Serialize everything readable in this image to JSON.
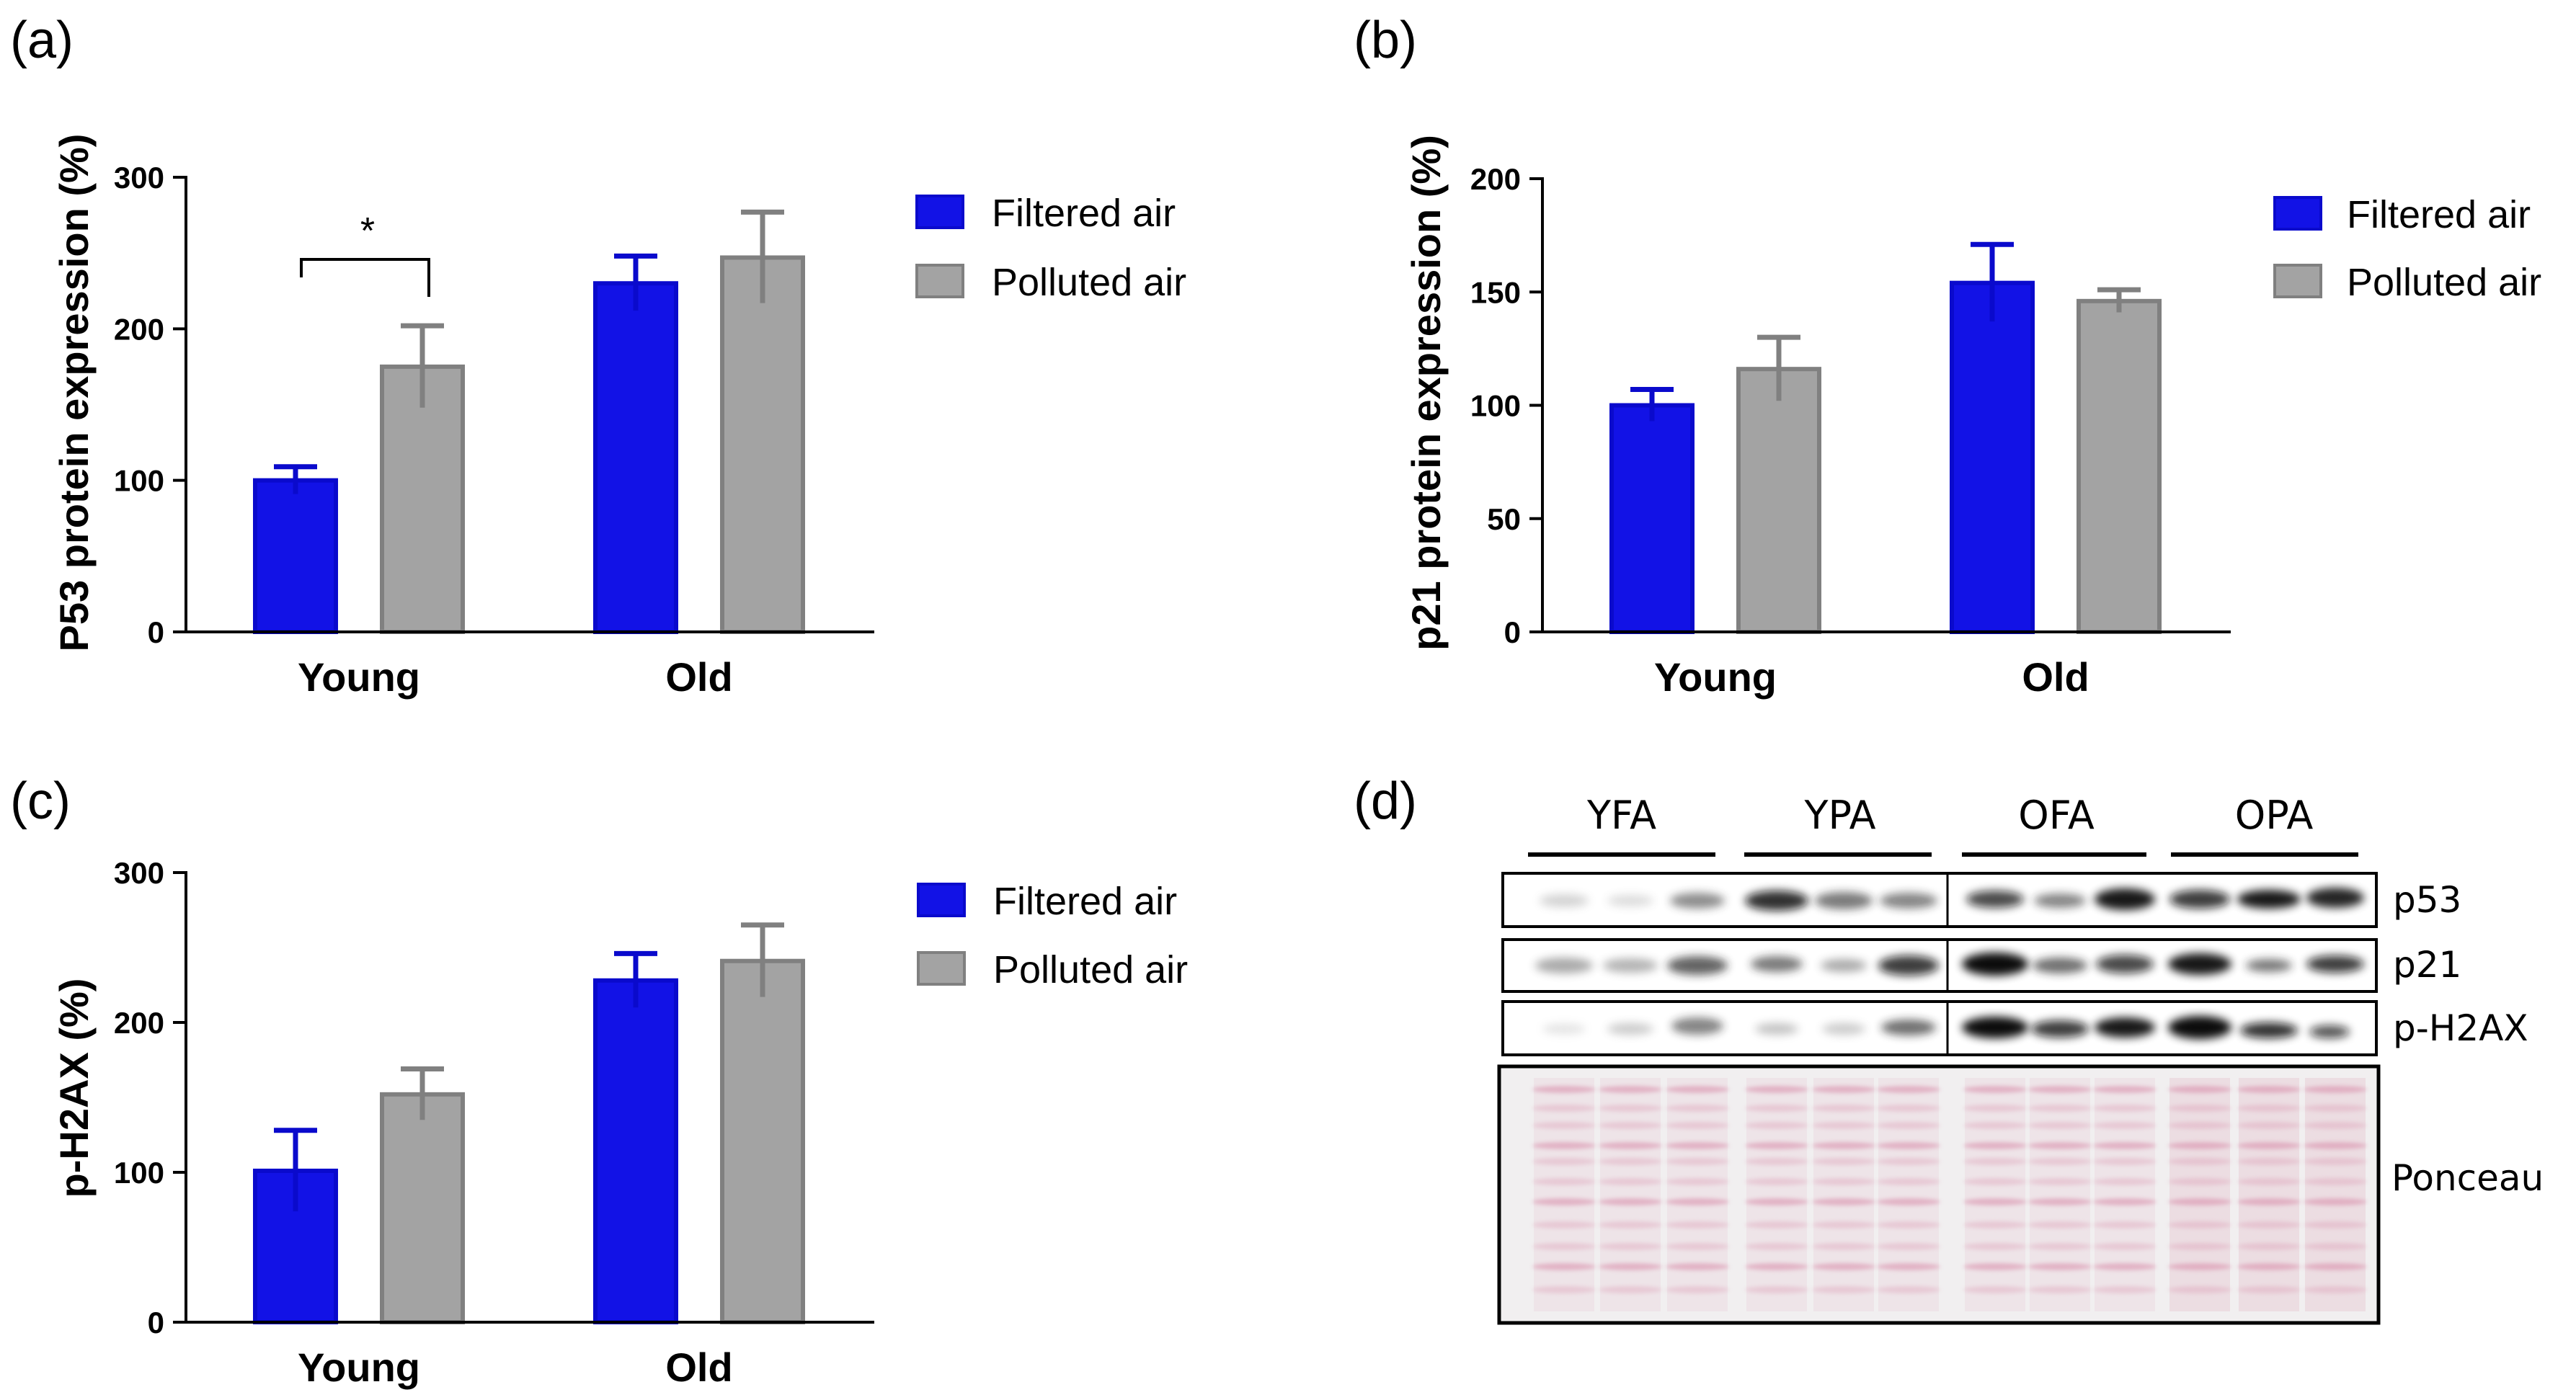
{
  "colors": {
    "filtered": "#1212E6",
    "filtered_edge": "#0a0acc",
    "polluted": "#A3A3A3",
    "polluted_edge": "#808080",
    "ponceau": "#d88aa8"
  },
  "chart_data": [
    {
      "panel": "(a)",
      "type": "bar",
      "title": "",
      "xlabel": "",
      "ylabel": "P53 protein expression (%)",
      "categories": [
        "Young",
        "Old"
      ],
      "series": [
        {
          "name": "Filtered air",
          "values": [
            100,
            230
          ],
          "errors": [
            9,
            18
          ]
        },
        {
          "name": "Polluted air",
          "values": [
            175,
            247
          ],
          "errors": [
            27,
            30
          ]
        }
      ],
      "ylim": [
        0,
        300
      ],
      "yticks": [
        "0",
        "100",
        "200",
        "300"
      ],
      "annotation": "*",
      "legend": [
        "Filtered air",
        "Polluted air"
      ]
    },
    {
      "panel": "(b)",
      "type": "bar",
      "title": "",
      "xlabel": "",
      "ylabel": "p21 protein expression (%)",
      "categories": [
        "Young",
        "Old"
      ],
      "series": [
        {
          "name": "Filtered air",
          "values": [
            100,
            154
          ],
          "errors": [
            7,
            17
          ]
        },
        {
          "name": "Polluted air",
          "values": [
            116,
            146
          ],
          "errors": [
            14,
            5
          ]
        }
      ],
      "ylim": [
        0,
        200
      ],
      "yticks": [
        "0",
        "50",
        "100",
        "150",
        "200"
      ],
      "legend": [
        "Filtered air",
        "Polluted air"
      ]
    },
    {
      "panel": "(c)",
      "type": "bar",
      "title": "",
      "xlabel": "",
      "ylabel": "p-H2AX (%)",
      "categories": [
        "Young",
        "Old"
      ],
      "series": [
        {
          "name": "Filtered air",
          "values": [
            101,
            228
          ],
          "errors": [
            27,
            18
          ]
        },
        {
          "name": "Polluted air",
          "values": [
            152,
            241
          ],
          "errors": [
            17,
            24
          ]
        }
      ],
      "ylim": [
        0,
        300
      ],
      "yticks": [
        "0",
        "100",
        "200",
        "300"
      ],
      "legend": [
        "Filtered air",
        "Polluted air"
      ]
    }
  ],
  "blot": {
    "panel": "(d)",
    "lane_groups": [
      "YFA",
      "YPA",
      "OFA",
      "OPA"
    ],
    "rows": [
      "p53",
      "p21",
      "p-H2AX",
      "Ponceau"
    ]
  }
}
